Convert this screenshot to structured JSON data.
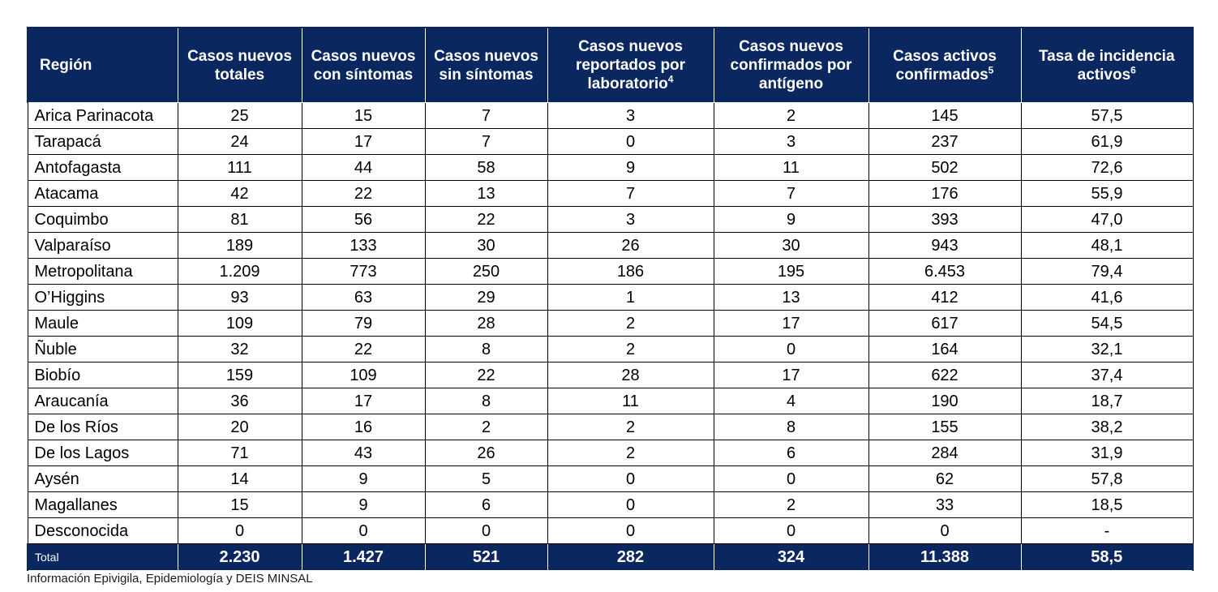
{
  "table": {
    "headers": [
      {
        "text": "Región",
        "sup": ""
      },
      {
        "text": "Casos nuevos totales",
        "sup": ""
      },
      {
        "text": "Casos nuevos con síntomas",
        "sup": ""
      },
      {
        "text": "Casos nuevos sin síntomas",
        "sup": ""
      },
      {
        "text": "Casos nuevos reportados por laboratorio",
        "sup": "4"
      },
      {
        "text": "Casos nuevos confirmados por antígeno",
        "sup": ""
      },
      {
        "text": "Casos activos confirmados",
        "sup": "5"
      },
      {
        "text": "Tasa de incidencia activos",
        "sup": "6"
      }
    ],
    "rows": [
      [
        "Arica Parinacota",
        "25",
        "15",
        "7",
        "3",
        "2",
        "145",
        "57,5"
      ],
      [
        "Tarapacá",
        "24",
        "17",
        "7",
        "0",
        "3",
        "237",
        "61,9"
      ],
      [
        "Antofagasta",
        "111",
        "44",
        "58",
        "9",
        "11",
        "502",
        "72,6"
      ],
      [
        "Atacama",
        "42",
        "22",
        "13",
        "7",
        "7",
        "176",
        "55,9"
      ],
      [
        "Coquimbo",
        "81",
        "56",
        "22",
        "3",
        "9",
        "393",
        "47,0"
      ],
      [
        "Valparaíso",
        "189",
        "133",
        "30",
        "26",
        "30",
        "943",
        "48,1"
      ],
      [
        "Metropolitana",
        "1.209",
        "773",
        "250",
        "186",
        "195",
        "6.453",
        "79,4"
      ],
      [
        "O’Higgins",
        "93",
        "63",
        "29",
        "1",
        "13",
        "412",
        "41,6"
      ],
      [
        "Maule",
        "109",
        "79",
        "28",
        "2",
        "17",
        "617",
        "54,5"
      ],
      [
        "Ñuble",
        "32",
        "22",
        "8",
        "2",
        "0",
        "164",
        "32,1"
      ],
      [
        "Biobío",
        "159",
        "109",
        "22",
        "28",
        "17",
        "622",
        "37,4"
      ],
      [
        "Araucanía",
        "36",
        "17",
        "8",
        "11",
        "4",
        "190",
        "18,7"
      ],
      [
        "De los Ríos",
        "20",
        "16",
        "2",
        "2",
        "8",
        "155",
        "38,2"
      ],
      [
        "De los Lagos",
        "71",
        "43",
        "26",
        "2",
        "6",
        "284",
        "31,9"
      ],
      [
        "Aysén",
        "14",
        "9",
        "5",
        "0",
        "0",
        "62",
        "57,8"
      ],
      [
        "Magallanes",
        "15",
        "9",
        "6",
        "0",
        "2",
        "33",
        "18,5"
      ],
      [
        "Desconocida",
        "0",
        "0",
        "0",
        "0",
        "0",
        "0",
        "-"
      ]
    ],
    "total": [
      "Total",
      "2.230",
      "1.427",
      "521",
      "282",
      "324",
      "11.388",
      "58,5"
    ]
  },
  "source_note": "Información Epivigila, Epidemiología y DEIS MINSAL",
  "colors": {
    "header_bg": "#0b2760",
    "header_text": "#ffffff"
  }
}
